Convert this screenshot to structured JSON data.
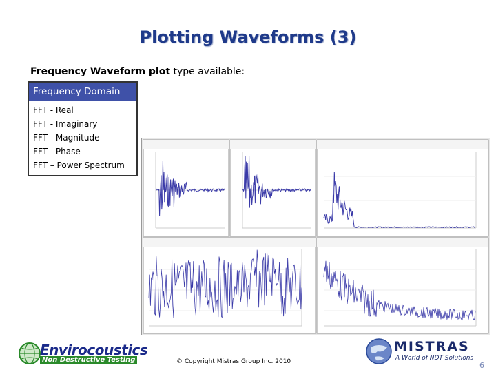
{
  "slide": {
    "title": "Plotting Waveforms (3)",
    "subtitle_bold_1": "Frequency Waveform plot",
    "subtitle_rest": " type available:",
    "page_number": "6",
    "copyright": "© Copyright Mistras Group Inc. 2010"
  },
  "frequency_domain": {
    "header": "Frequency Domain",
    "items": [
      "FFT - Real",
      "FFT - Imaginary",
      "FFT - Magnitude",
      "FFT - Phase",
      "FFT – Power Spectrum"
    ]
  },
  "logos": {
    "left_main": "Envirocoustics",
    "left_sub": "Non Destructive Testing",
    "right_main": "MISTRAS",
    "right_sub": "A World of NDT Solutions"
  },
  "colors": {
    "title": "#1f3a8a",
    "header_bg": "#3f51a8",
    "trace": "#3a3aa8",
    "logo_green": "#2a8a2a",
    "logo_blue": "#1a2a8a"
  }
}
